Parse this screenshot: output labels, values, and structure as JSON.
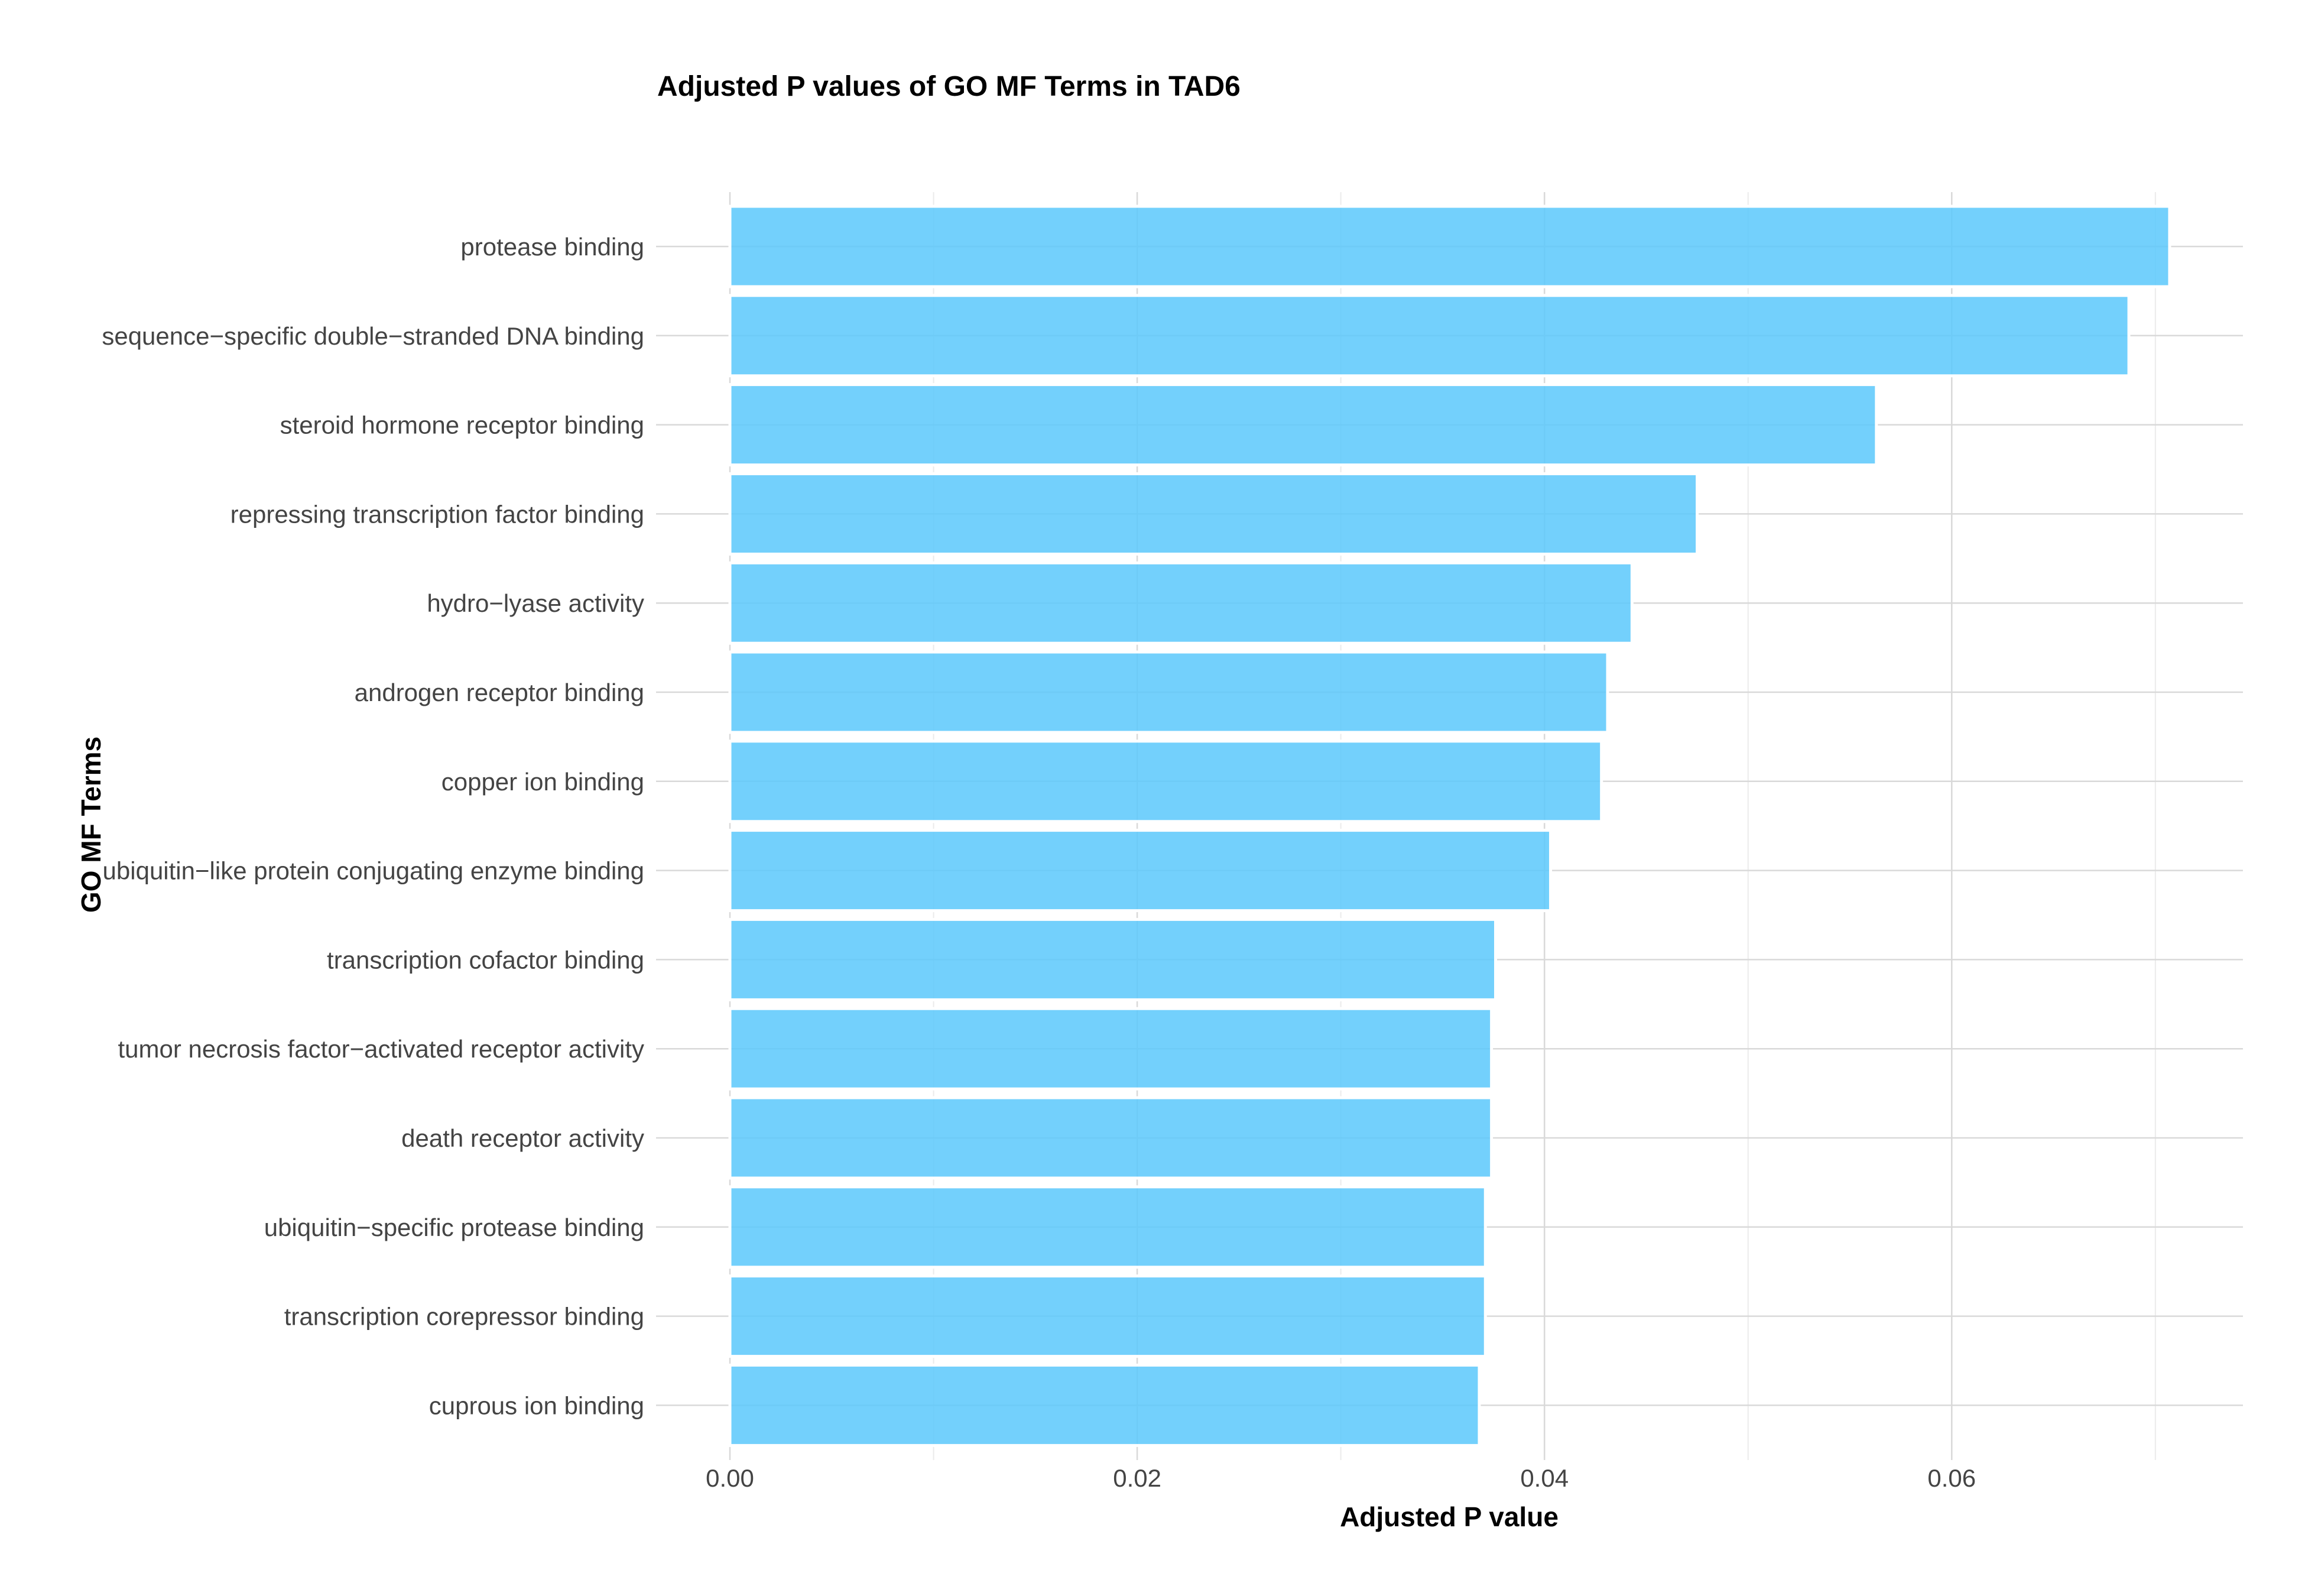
{
  "chart_data": {
    "type": "bar",
    "orientation": "horizontal",
    "title": "Adjusted P values of GO MF Terms in TAD6",
    "xlabel": "Adjusted P value",
    "ylabel": "GO MF Terms",
    "xlim": [
      0,
      0.0743
    ],
    "xticks": [
      0,
      0.02,
      0.04,
      0.06
    ],
    "xtick_labels": [
      "0.00",
      "0.02",
      "0.04",
      "0.06"
    ],
    "bar_color": "#5bc8fb",
    "grid": true,
    "legend": "none",
    "categories": [
      "protease binding",
      "sequence−specific double−stranded DNA binding",
      "steroid hormone receptor binding",
      "repressing transcription factor binding",
      "hydro−lyase activity",
      "androgen receptor binding",
      "copper ion binding",
      "ubiquitin−like protein conjugating enzyme binding",
      "transcription cofactor binding",
      "tumor necrosis factor−activated receptor activity",
      "death receptor activity",
      "ubiquitin−specific protease binding",
      "transcription corepressor binding",
      "cuprous ion binding"
    ],
    "values": [
      0.0707,
      0.0687,
      0.0563,
      0.0475,
      0.0443,
      0.0431,
      0.0428,
      0.0403,
      0.0376,
      0.0374,
      0.0374,
      0.0371,
      0.0371,
      0.0368
    ]
  }
}
